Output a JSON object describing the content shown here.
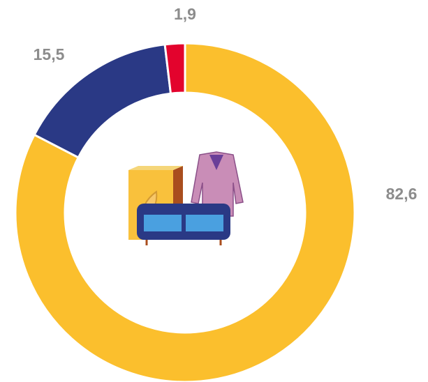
{
  "chart_data": {
    "type": "donut",
    "values": [
      82.6,
      15.5,
      1.9
    ],
    "value_labels": [
      "82,6",
      "15,5",
      "1,9"
    ],
    "colors": [
      "#fbbf2d",
      "#2a3985",
      "#e3032d"
    ]
  }
}
